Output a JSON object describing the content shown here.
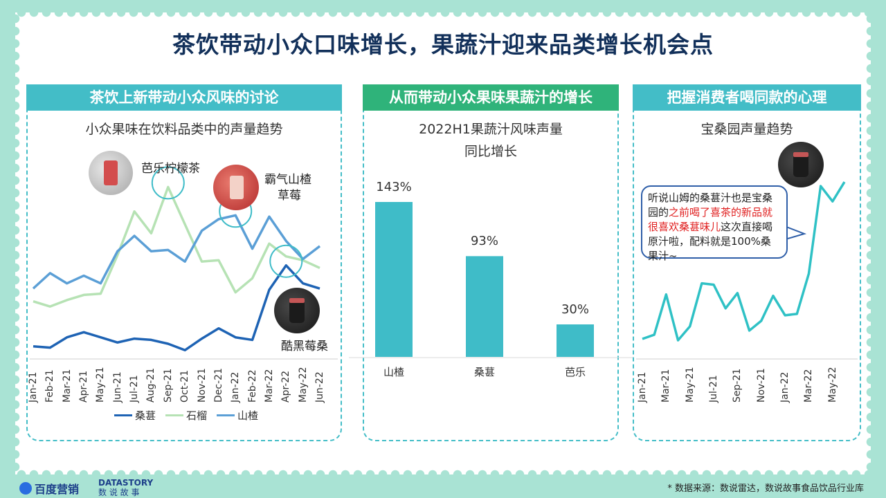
{
  "title": "茶饮带动小众口味增长，果蔬汁迎来品类增长机会点",
  "panels": [
    {
      "header": "茶饮上新带动小众风味的讨论",
      "header_color": "#43bdc7",
      "subtitle": "小众果味在饮料品类中的声量趋势",
      "annotations": {
        "a1": "芭乐柠檬茶",
        "a2a": "霸气山楂",
        "a2b": "草莓",
        "a3": "酷黑莓桑"
      }
    },
    {
      "header": "从而带动小众果味果蔬汁的增长",
      "header_color": "#2fb37a",
      "subtitle_l1": "2022H1果蔬汁风味声量",
      "subtitle_l2": "同比增长"
    },
    {
      "header": "把握消费者喝同款的心理",
      "header_color": "#43bdc7",
      "subtitle": "宝桑园声量趋势",
      "bubble": {
        "t1": "听说山姆的桑葚汁也是宝桑园的",
        "t2": "之前喝了喜茶的新品就很喜欢桑葚味儿",
        "t3": "这次直接喝原汁啦，配料就是100%桑果汁~"
      }
    }
  ],
  "chart_data": [
    {
      "type": "line",
      "title": "小众果味在饮料品类中的声量趋势",
      "x": [
        "Jan-21",
        "Feb-21",
        "Mar-21",
        "Apr-21",
        "May-21",
        "Jun-21",
        "Jul-21",
        "Aug-21",
        "Sep-21",
        "Oct-21",
        "Nov-21",
        "Dec-21",
        "Jan-22",
        "Feb-22",
        "Mar-22",
        "Apr-22",
        "May-22",
        "Jun-22"
      ],
      "series": [
        {
          "name": "桑葚",
          "color": "#1e63b4",
          "values": [
            5,
            4,
            12,
            16,
            12,
            8,
            11,
            10,
            7,
            2,
            11,
            19,
            12,
            10,
            49,
            68,
            54,
            50
          ]
        },
        {
          "name": "石榴",
          "color": "#b6e2b4",
          "values": [
            40,
            36,
            41,
            45,
            46,
            76,
            110,
            93,
            129,
            100,
            71,
            72,
            47,
            58,
            85,
            75,
            72,
            66
          ]
        },
        {
          "name": "山楂",
          "color": "#5b9fd6",
          "values": [
            50,
            62,
            54,
            60,
            54,
            79,
            91,
            79,
            80,
            71,
            95,
            104,
            107,
            81,
            106,
            87,
            73,
            83
          ]
        }
      ]
    },
    {
      "type": "bar",
      "title": "2022H1果蔬汁风味声量同比增长",
      "categories": [
        "山楂",
        "桑葚",
        "芭乐"
      ],
      "values": [
        143,
        93,
        30
      ],
      "value_labels": [
        "143%",
        "93%",
        "30%"
      ],
      "color": "#3fbcc8"
    },
    {
      "type": "line",
      "title": "宝桑园声量趋势",
      "x": [
        "Jan-21",
        "Feb-21",
        "Mar-21",
        "Apr-21",
        "May-21",
        "Jun-21",
        "Jul-21",
        "Aug-21",
        "Sep-21",
        "Oct-21",
        "Nov-21",
        "Dec-21",
        "Jan-22",
        "Feb-22",
        "Mar-22",
        "Apr-22",
        "May-22",
        "Jun-22"
      ],
      "tick_labels": [
        "Jan-21",
        "Mar-21",
        "May-21",
        "Jul-21",
        "Sep-21",
        "Nov-21",
        "Jan-22",
        "Mar-22",
        "May-22"
      ],
      "series": [
        {
          "values": [
            3,
            6,
            35,
            2,
            12,
            43,
            42,
            25,
            36,
            9,
            16,
            34,
            20,
            21,
            50,
            113,
            102,
            116
          ],
          "color": "#2fc1c5"
        }
      ]
    }
  ],
  "footer": {
    "source": "* 数据来源：数说雷达，数说故事食品饮品行业库",
    "logo1": "百度营销",
    "logo2_top": "DATASTORY",
    "logo2_bottom": "数 说 故 事"
  }
}
